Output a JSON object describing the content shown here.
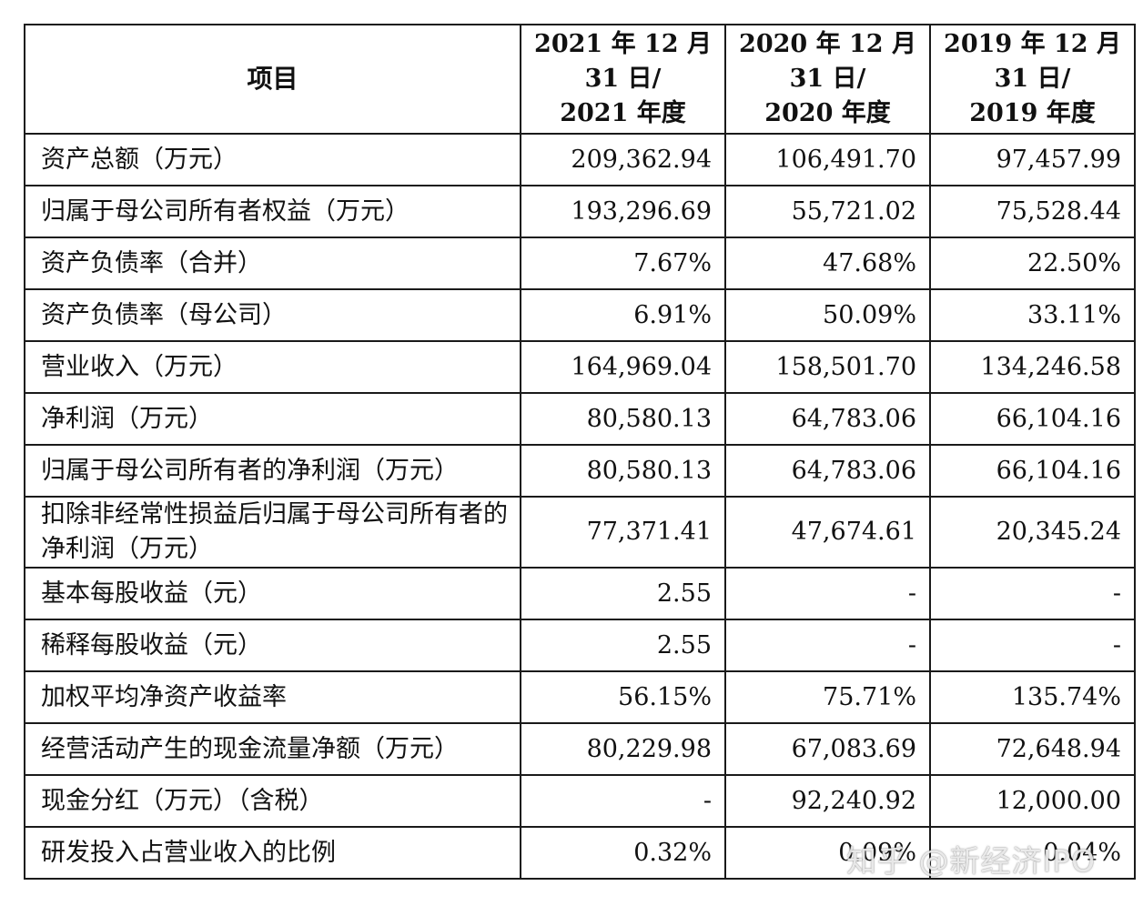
{
  "table": {
    "header": {
      "item": "项目",
      "col2021": [
        "2021 年 12 月",
        "31 日/",
        "2021 年度"
      ],
      "col2020": [
        "2020 年 12 月",
        "31 日/",
        "2020 年度"
      ],
      "col2019": [
        "2019 年 12 月",
        "31 日/",
        "2019 年度"
      ]
    },
    "rows": [
      {
        "label": "资产总额（万元）",
        "v2021": "209,362.94",
        "v2020": "106,491.70",
        "v2019": "97,457.99"
      },
      {
        "label": "归属于母公司所有者权益（万元）",
        "v2021": "193,296.69",
        "v2020": "55,721.02",
        "v2019": "75,528.44"
      },
      {
        "label": "资产负债率（合并）",
        "v2021": "7.67%",
        "v2020": "47.68%",
        "v2019": "22.50%"
      },
      {
        "label": "资产负债率（母公司）",
        "v2021": "6.91%",
        "v2020": "50.09%",
        "v2019": "33.11%"
      },
      {
        "label": "营业收入（万元）",
        "v2021": "164,969.04",
        "v2020": "158,501.70",
        "v2019": "134,246.58"
      },
      {
        "label": "净利润（万元）",
        "v2021": "80,580.13",
        "v2020": "64,783.06",
        "v2019": "66,104.16"
      },
      {
        "label": "归属于母公司所有者的净利润（万元）",
        "v2021": "80,580.13",
        "v2020": "64,783.06",
        "v2019": "66,104.16"
      },
      {
        "label": "扣除非经常性损益后归属于母公司所有者的净利润（万元）",
        "v2021": "77,371.41",
        "v2020": "47,674.61",
        "v2019": "20,345.24"
      },
      {
        "label": "基本每股收益（元）",
        "v2021": "2.55",
        "v2020": "-",
        "v2019": "-"
      },
      {
        "label": "稀释每股收益（元）",
        "v2021": "2.55",
        "v2020": "-",
        "v2019": "-"
      },
      {
        "label": "加权平均净资产收益率",
        "v2021": "56.15%",
        "v2020": "75.71%",
        "v2019": "135.74%"
      },
      {
        "label": "经营活动产生的现金流量净额（万元）",
        "v2021": "80,229.98",
        "v2020": "67,083.69",
        "v2019": "72,648.94"
      },
      {
        "label": "现金分红（万元）（含税）",
        "v2021": "-",
        "v2020": "92,240.92",
        "v2019": "12,000.00"
      },
      {
        "label": "研发投入占营业收入的比例",
        "v2021": "0.32%",
        "v2020": "0.09%",
        "v2019": "0.04%"
      }
    ]
  },
  "watermark": "知乎 @新经济IPO"
}
